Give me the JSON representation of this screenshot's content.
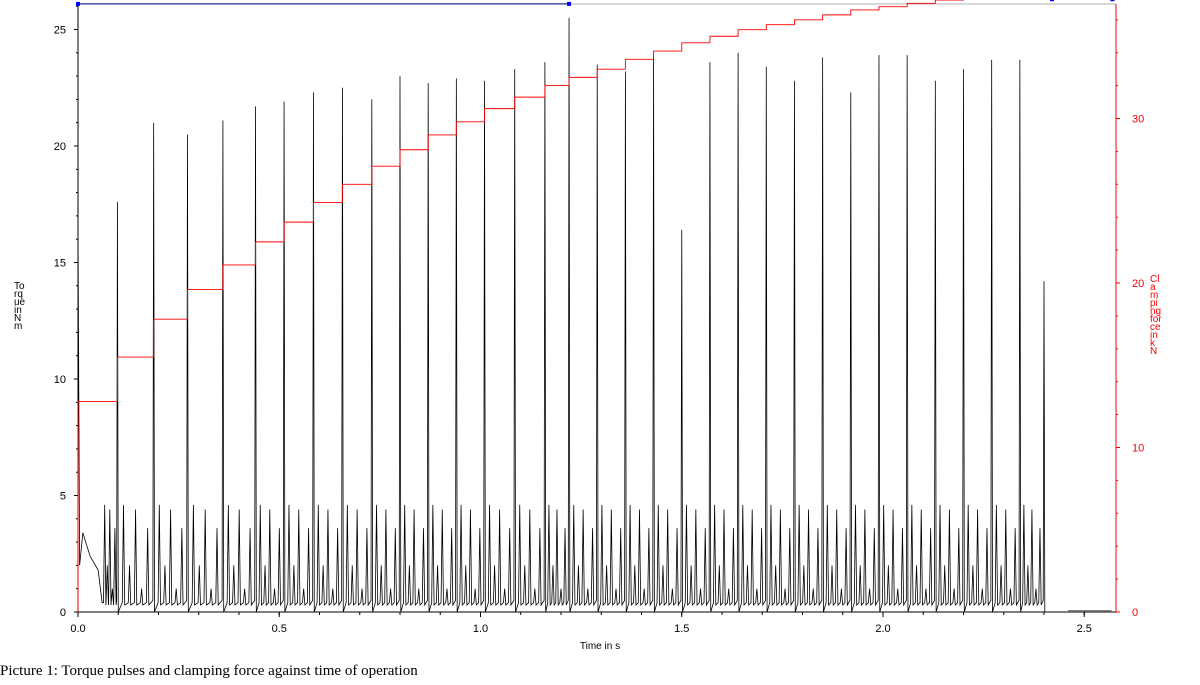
{
  "caption": "Picture 1: Torque pulses and clamping force against time of operation",
  "chart_data": {
    "type": "line",
    "xlabel": "Time in s",
    "ylabel_left": "Torque in Nm",
    "ylabel_right": "Clamping force in kN",
    "xlim": [
      0,
      2.57
    ],
    "ylim_left": [
      0,
      26.5
    ],
    "ylim_right": [
      0,
      38
    ],
    "x_ticks": [
      "0.0",
      "0.5",
      "1.0",
      "1.5",
      "2.0",
      "2.5"
    ],
    "y_ticks_left": [
      "0",
      "5",
      "10",
      "15",
      "20",
      "25"
    ],
    "y_ticks_right": [
      "0",
      "10",
      "20",
      "30"
    ],
    "grid": false,
    "colors": {
      "torque": "#000000",
      "clamping": "#ff0000",
      "marker": "#0000ff"
    },
    "torque_pulse_times": [
      0.098,
      0.188,
      0.272,
      0.36,
      0.441,
      0.512,
      0.585,
      0.657,
      0.73,
      0.8,
      0.87,
      0.94,
      1.01,
      1.085,
      1.16,
      1.22,
      1.29,
      1.36,
      1.43,
      1.5,
      1.57,
      1.64,
      1.71,
      1.78,
      1.85,
      1.92,
      1.99,
      2.06,
      2.13,
      2.2,
      2.27,
      2.34,
      2.4
    ],
    "torque_pulse_peaks": [
      17.6,
      21.0,
      20.5,
      21.1,
      21.7,
      21.9,
      22.3,
      22.5,
      22.0,
      23.0,
      22.7,
      22.9,
      22.8,
      23.3,
      23.6,
      25.5,
      23.5,
      23.2,
      23.9,
      16.4,
      23.6,
      24.0,
      23.4,
      22.8,
      23.8,
      22.3,
      23.9,
      23.9,
      22.8,
      23.3,
      23.7,
      23.7,
      14.2
    ],
    "clamping_steps": {
      "t": [
        0.0,
        0.098,
        0.188,
        0.272,
        0.36,
        0.441,
        0.512,
        0.585,
        0.657,
        0.73,
        0.8,
        0.87,
        0.94,
        1.01,
        1.085,
        1.16,
        1.22,
        1.29,
        1.36,
        1.43,
        1.5,
        1.57,
        1.64,
        1.71,
        1.78,
        1.85,
        1.92,
        1.99,
        2.06,
        2.13,
        2.2,
        2.27,
        2.34,
        2.4
      ],
      "kN": [
        12.8,
        15.5,
        17.8,
        19.6,
        21.1,
        22.5,
        23.7,
        24.9,
        26.0,
        27.1,
        28.1,
        29.0,
        29.8,
        30.6,
        31.3,
        32.0,
        32.5,
        33.0,
        33.6,
        34.1,
        34.6,
        35.0,
        35.4,
        35.7,
        36.0,
        36.3,
        36.6,
        36.8,
        37.0,
        37.2,
        37.4,
        37.5,
        37.6,
        37.6
      ]
    },
    "markers": [
      {
        "x": 0.0,
        "y": 26.1
      },
      {
        "x": 1.22,
        "y": 26.1
      },
      {
        "x": 2.42,
        "y": 26.3
      },
      {
        "x": 2.57,
        "y": 26.3
      }
    ]
  }
}
